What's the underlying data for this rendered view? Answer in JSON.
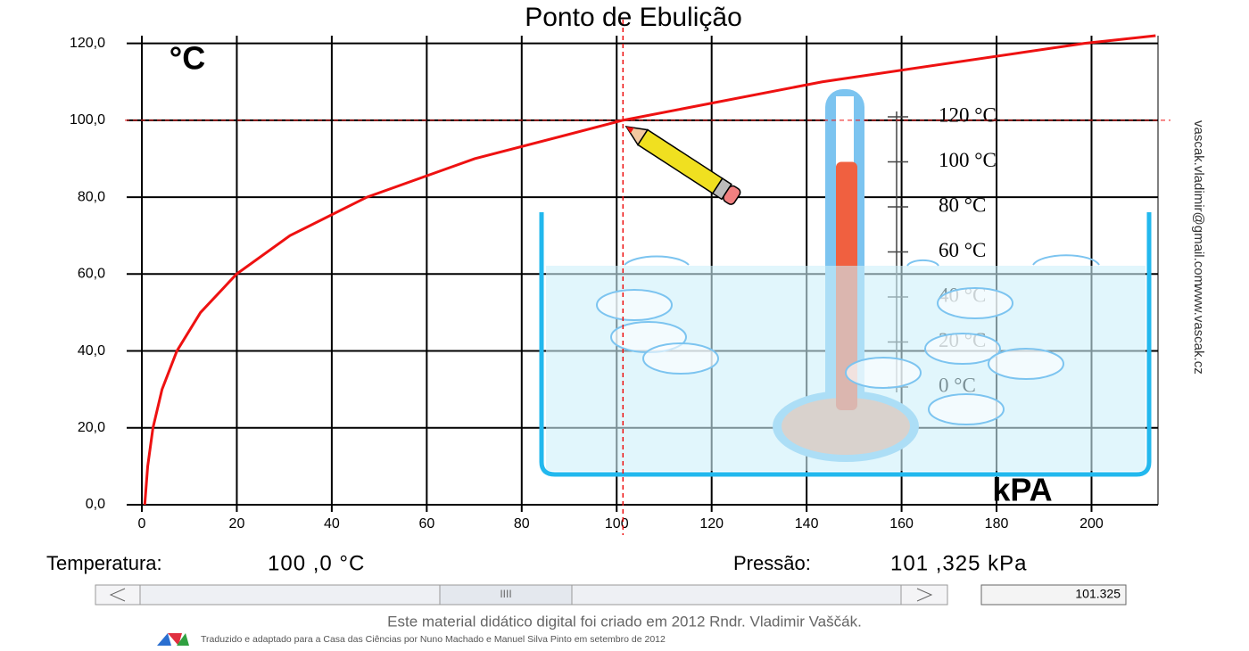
{
  "chart_data": {
    "type": "line",
    "title": "Ponto de Ebulição",
    "y_label": "°C",
    "x_label": "kPA",
    "x": [
      0.61,
      1.23,
      2.34,
      4.25,
      7.38,
      12.35,
      19.95,
      31.2,
      47.4,
      70.1,
      101.325,
      143.3,
      198.5,
      213.5
    ],
    "values": [
      0,
      10,
      20,
      30,
      40,
      50,
      60,
      70,
      80,
      90,
      100,
      110,
      120,
      122
    ],
    "color": "#ee1111",
    "xlim": [
      0,
      214
    ],
    "ylim": [
      0,
      122
    ],
    "xticks": [
      0,
      20,
      40,
      60,
      80,
      100,
      120,
      140,
      160,
      180,
      200
    ],
    "yticks": [
      {
        "value": 0,
        "label": "0,0"
      },
      {
        "value": 20,
        "label": "20,0"
      },
      {
        "value": 40,
        "label": "40,0"
      },
      {
        "value": 60,
        "label": "60,0"
      },
      {
        "value": 80,
        "label": "80,0"
      },
      {
        "value": 100,
        "label": "100,0"
      },
      {
        "value": 120,
        "label": "120,0"
      }
    ],
    "grid": true,
    "reference": {
      "x": 101.325,
      "y": 100
    },
    "thermometer_ticks": [
      {
        "value": 120,
        "label": "120 °C"
      },
      {
        "value": 100,
        "label": "100 °C"
      },
      {
        "value": 80,
        "label": "80 °C"
      },
      {
        "value": 60,
        "label": "60 °C"
      },
      {
        "value": 40,
        "label": "40 °C"
      },
      {
        "value": 20,
        "label": "20 °C"
      },
      {
        "value": 0,
        "label": "0 °C"
      }
    ]
  },
  "side_text": [
    "vascak.vladimir@gmail.com",
    "www.vascak.cz"
  ],
  "readout": {
    "temperature_label": "Temperatura:",
    "temperature_value": "100 ,0  °C",
    "pressure_label": "Pressão:",
    "pressure_value": "101 ,325 kPa",
    "input_value": "101.325"
  },
  "slider": {
    "thumb": "IIII"
  },
  "footer": {
    "line1": "Este material didático digital foi criado em 2012 Rndr. Vladimir Vaščák.",
    "line2": "Traduzido e adaptado para a Casa das Ciências por Nuno Machado e Manuel Silva Pinto em setembro de 2012"
  }
}
